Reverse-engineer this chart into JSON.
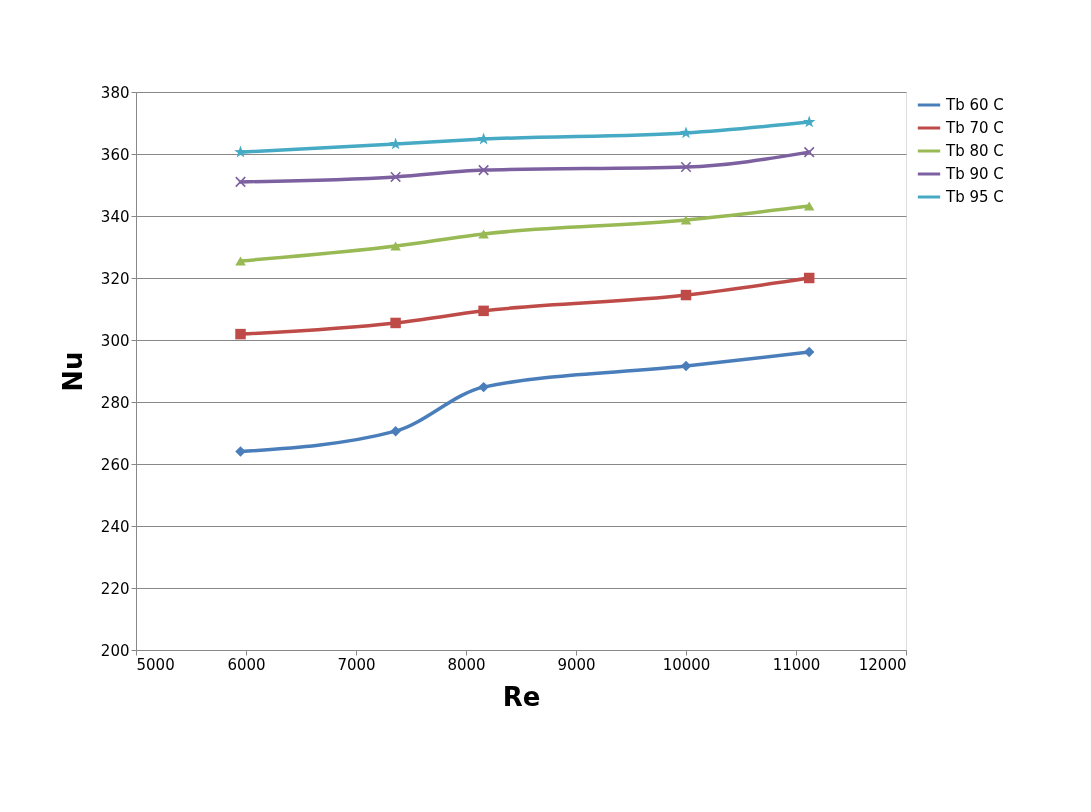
{
  "chart_data": {
    "type": "line",
    "xlabel": "Re",
    "ylabel": "Nu",
    "x": [
      5950,
      7360,
      8160,
      10000,
      11120
    ],
    "series": [
      {
        "name": "Tb 60 C",
        "color": "#4a7ebb",
        "marker": "diamond",
        "values": [
          264,
          270.6,
          284.8,
          291.6,
          296.1
        ]
      },
      {
        "name": "Tb 70 C",
        "color": "#be4b48",
        "marker": "square",
        "values": [
          301.9,
          305.5,
          309.4,
          314.5,
          320
        ]
      },
      {
        "name": "Tb 80 C",
        "color": "#98b954",
        "marker": "triangle",
        "values": [
          325.5,
          330.3,
          334.2,
          338.7,
          343.2
        ]
      },
      {
        "name": "Tb 90 C",
        "color": "#7d60a0",
        "marker": "cross",
        "values": [
          351,
          352.6,
          354.8,
          355.8,
          360.6
        ]
      },
      {
        "name": "Tb 95 C",
        "color": "#46aac5",
        "marker": "star",
        "values": [
          360.6,
          363.2,
          364.8,
          366.8,
          370.3
        ]
      }
    ],
    "xlim": [
      5000,
      12000
    ],
    "xticks": [
      5000,
      6000,
      7000,
      8000,
      9000,
      10000,
      11000,
      12000
    ],
    "ylim": [
      200,
      380
    ],
    "yticks": [
      200,
      220,
      240,
      260,
      280,
      300,
      320,
      340,
      360,
      380
    ],
    "grid": "y",
    "legend": "right",
    "line_style": "solid"
  }
}
